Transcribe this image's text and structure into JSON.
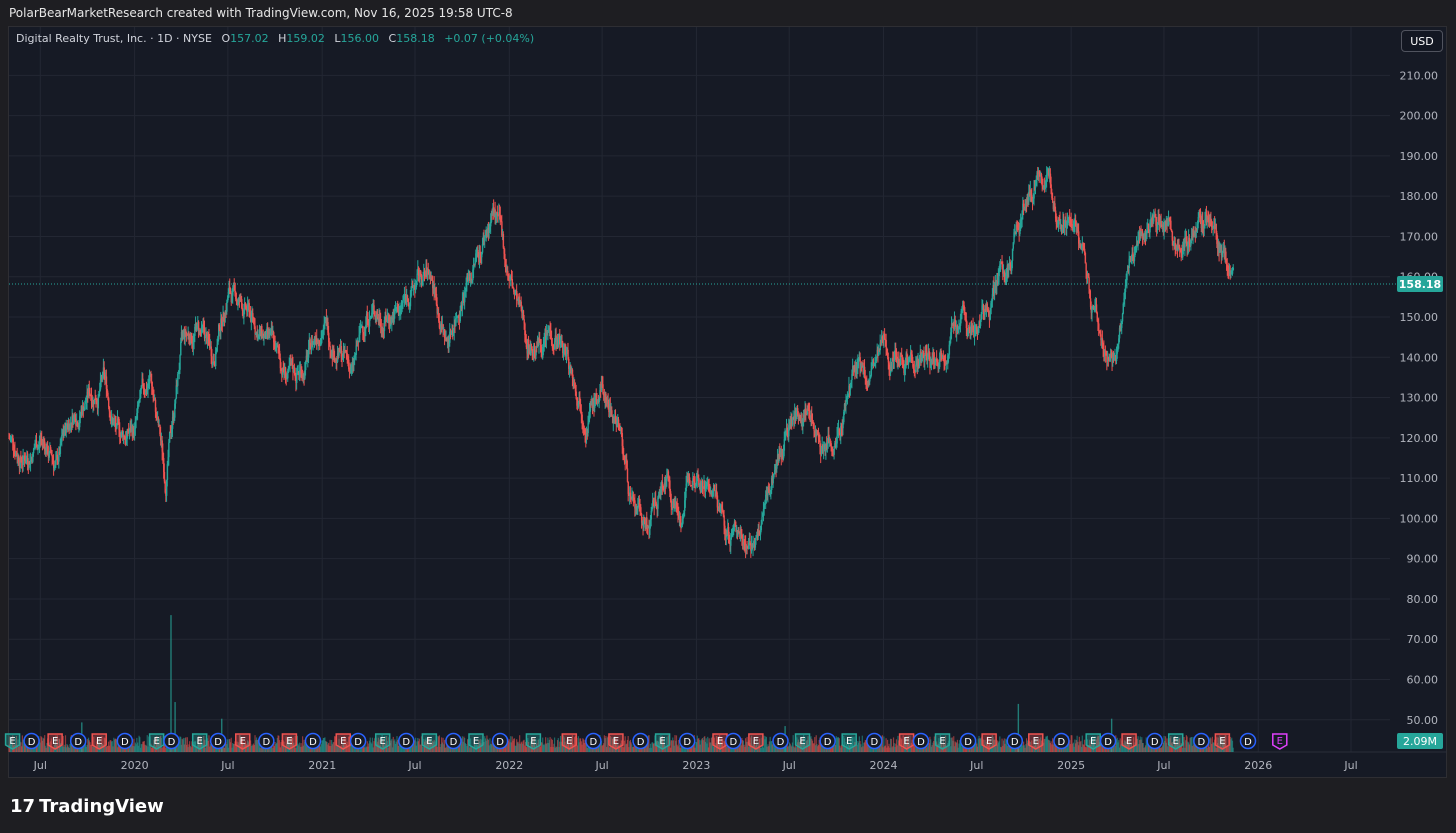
{
  "header": {
    "attribution": "PolarBearMarketResearch created with TradingView.com, Nov 16, 2025 19:58 UTC-8"
  },
  "legend": {
    "symbol": "Digital Realty Trust, Inc. · 1D · NYSE",
    "o_label": "O",
    "o_value": "157.02",
    "h_label": "H",
    "h_value": "159.02",
    "l_label": "L",
    "l_value": "156.00",
    "c_label": "C",
    "c_value": "158.18",
    "change": "+0.07 (+0.04%)"
  },
  "currency_button": "USD",
  "brand": {
    "logo": "17",
    "name": "TradingView"
  },
  "colors": {
    "background": "#161a25",
    "grid": "#232733",
    "up": "#26a69a",
    "down": "#ef5350",
    "text": "#b2b5be",
    "dividend": "#2962ff",
    "earnings_beat": "#26a69a",
    "earnings_miss": "#ef5350",
    "earnings_future": "#e040fb"
  },
  "chart_data": {
    "type": "candlestick",
    "y_axis": {
      "ticks": [
        "210.00",
        "200.00",
        "190.00",
        "180.00",
        "170.00",
        "160.00",
        "150.00",
        "140.00",
        "130.00",
        "120.00",
        "110.00",
        "100.00",
        "90.00",
        "80.00",
        "70.00",
        "60.00",
        "50.00"
      ],
      "tick_values": [
        210,
        200,
        190,
        180,
        170,
        160,
        150,
        140,
        130,
        120,
        110,
        100,
        90,
        80,
        70,
        60,
        50
      ],
      "range": [
        42,
        222
      ]
    },
    "x_axis": {
      "ticks": [
        "Jul",
        "2020",
        "Jul",
        "2021",
        "Jul",
        "2022",
        "Jul",
        "2023",
        "Jul",
        "2024",
        "Jul",
        "2025",
        "Jul",
        "2026",
        "Jul"
      ],
      "tick_dates": [
        "2019-07-01",
        "2020-01-01",
        "2020-07-01",
        "2021-01-01",
        "2021-07-01",
        "2022-01-01",
        "2022-07-01",
        "2023-01-01",
        "2023-07-01",
        "2024-01-01",
        "2024-07-01",
        "2025-01-01",
        "2025-07-01",
        "2026-01-01",
        "2026-07-01"
      ],
      "range": [
        "2019-05-01",
        "2026-09-15"
      ]
    },
    "last_price": {
      "value": 158.18,
      "label": "158.18"
    },
    "volume_label": "2.09M",
    "price_path": [
      [
        "2019-05-01",
        120
      ],
      [
        "2019-06-01",
        116
      ],
      [
        "2019-07-01",
        121
      ],
      [
        "2019-08-01",
        113
      ],
      [
        "2019-09-01",
        126
      ],
      [
        "2019-10-01",
        131
      ],
      [
        "2019-11-01",
        134
      ],
      [
        "2019-12-01",
        120
      ],
      [
        "2020-01-01",
        122
      ],
      [
        "2020-02-01",
        135
      ],
      [
        "2020-03-01",
        110
      ],
      [
        "2020-04-01",
        142
      ],
      [
        "2020-05-01",
        147
      ],
      [
        "2020-06-01",
        140
      ],
      [
        "2020-07-01",
        157
      ],
      [
        "2020-08-01",
        152
      ],
      [
        "2020-09-01",
        146
      ],
      [
        "2020-10-01",
        140
      ],
      [
        "2020-11-01",
        134
      ],
      [
        "2020-12-01",
        139
      ],
      [
        "2021-01-01",
        150
      ],
      [
        "2021-02-01",
        142
      ],
      [
        "2021-03-01",
        136
      ],
      [
        "2021-04-01",
        152
      ],
      [
        "2021-05-01",
        151
      ],
      [
        "2021-06-01",
        152
      ],
      [
        "2021-07-01",
        158
      ],
      [
        "2021-08-01",
        160
      ],
      [
        "2021-09-01",
        144
      ],
      [
        "2021-10-01",
        157
      ],
      [
        "2021-11-01",
        166
      ],
      [
        "2021-12-01",
        177
      ],
      [
        "2022-01-01",
        160
      ],
      [
        "2022-02-01",
        145
      ],
      [
        "2022-03-01",
        143
      ],
      [
        "2022-04-01",
        147
      ],
      [
        "2022-05-01",
        137
      ],
      [
        "2022-06-01",
        128
      ],
      [
        "2022-07-01",
        131
      ],
      [
        "2022-08-01",
        126
      ],
      [
        "2022-09-01",
        100
      ],
      [
        "2022-10-01",
        97
      ],
      [
        "2022-11-01",
        110
      ],
      [
        "2022-12-01",
        102
      ],
      [
        "2023-01-01",
        115
      ],
      [
        "2023-02-01",
        106
      ],
      [
        "2023-03-01",
        96
      ],
      [
        "2023-04-01",
        97
      ],
      [
        "2023-05-01",
        94
      ],
      [
        "2023-06-01",
        112
      ],
      [
        "2023-07-01",
        124
      ],
      [
        "2023-08-01",
        128
      ],
      [
        "2023-09-01",
        120
      ],
      [
        "2023-10-01",
        117
      ],
      [
        "2023-11-01",
        136
      ],
      [
        "2023-12-01",
        134
      ],
      [
        "2024-01-01",
        140
      ],
      [
        "2024-02-01",
        143
      ],
      [
        "2024-03-01",
        141
      ],
      [
        "2024-04-01",
        137
      ],
      [
        "2024-05-01",
        145
      ],
      [
        "2024-06-01",
        150
      ],
      [
        "2024-07-01",
        148
      ],
      [
        "2024-08-01",
        155
      ],
      [
        "2024-09-01",
        162
      ],
      [
        "2024-10-01",
        178
      ],
      [
        "2024-11-01",
        187
      ],
      [
        "2024-12-01",
        178
      ],
      [
        "2025-01-01",
        172
      ],
      [
        "2025-02-01",
        160
      ],
      [
        "2025-03-01",
        143
      ],
      [
        "2025-04-01",
        139
      ],
      [
        "2025-05-01",
        167
      ],
      [
        "2025-06-01",
        174
      ],
      [
        "2025-07-01",
        175
      ],
      [
        "2025-08-01",
        167
      ],
      [
        "2025-09-01",
        174
      ],
      [
        "2025-10-01",
        172
      ],
      [
        "2025-11-14",
        158
      ]
    ],
    "events": [
      {
        "type": "E",
        "result": "beat",
        "date": "2019-05-08"
      },
      {
        "type": "D",
        "date": "2019-06-14"
      },
      {
        "type": "E",
        "result": "miss",
        "date": "2019-07-30"
      },
      {
        "type": "D",
        "date": "2019-09-13"
      },
      {
        "type": "E",
        "result": "miss",
        "date": "2019-10-24"
      },
      {
        "type": "D",
        "date": "2019-12-13"
      },
      {
        "type": "E",
        "result": "beat",
        "date": "2020-02-13"
      },
      {
        "type": "D",
        "date": "2020-03-13"
      },
      {
        "type": "E",
        "result": "beat",
        "date": "2020-05-07"
      },
      {
        "type": "D",
        "date": "2020-06-12"
      },
      {
        "type": "E",
        "result": "miss",
        "date": "2020-07-30"
      },
      {
        "type": "D",
        "date": "2020-09-14"
      },
      {
        "type": "E",
        "result": "miss",
        "date": "2020-10-29"
      },
      {
        "type": "D",
        "date": "2020-12-14"
      },
      {
        "type": "E",
        "result": "miss",
        "date": "2021-02-11"
      },
      {
        "type": "D",
        "date": "2021-03-12"
      },
      {
        "type": "E",
        "result": "beat",
        "date": "2021-04-29"
      },
      {
        "type": "D",
        "date": "2021-06-14"
      },
      {
        "type": "E",
        "result": "beat",
        "date": "2021-07-29"
      },
      {
        "type": "D",
        "date": "2021-09-14"
      },
      {
        "type": "E",
        "result": "beat",
        "date": "2021-10-28"
      },
      {
        "type": "D",
        "date": "2021-12-14"
      },
      {
        "type": "E",
        "result": "beat",
        "date": "2022-02-17"
      },
      {
        "type": "E",
        "result": "miss",
        "date": "2022-04-28"
      },
      {
        "type": "D",
        "date": "2022-06-14"
      },
      {
        "type": "E",
        "result": "miss",
        "date": "2022-07-28"
      },
      {
        "type": "D",
        "date": "2022-09-14"
      },
      {
        "type": "E",
        "result": "beat",
        "date": "2022-10-27"
      },
      {
        "type": "D",
        "date": "2022-12-14"
      },
      {
        "type": "E",
        "result": "miss",
        "date": "2023-02-16"
      },
      {
        "type": "D",
        "date": "2023-03-14"
      },
      {
        "type": "E",
        "result": "miss",
        "date": "2023-04-27"
      },
      {
        "type": "D",
        "date": "2023-06-14"
      },
      {
        "type": "E",
        "result": "beat",
        "date": "2023-07-27"
      },
      {
        "type": "D",
        "date": "2023-09-14"
      },
      {
        "type": "E",
        "result": "beat",
        "date": "2023-10-26"
      },
      {
        "type": "D",
        "date": "2023-12-14"
      },
      {
        "type": "E",
        "result": "miss",
        "date": "2024-02-15"
      },
      {
        "type": "D",
        "date": "2024-03-14"
      },
      {
        "type": "E",
        "result": "beat",
        "date": "2024-04-25"
      },
      {
        "type": "D",
        "date": "2024-06-14"
      },
      {
        "type": "E",
        "result": "miss",
        "date": "2024-07-25"
      },
      {
        "type": "D",
        "date": "2024-09-13"
      },
      {
        "type": "E",
        "result": "miss",
        "date": "2024-10-24"
      },
      {
        "type": "D",
        "date": "2024-12-13"
      },
      {
        "type": "E",
        "result": "beat",
        "date": "2025-02-13"
      },
      {
        "type": "D",
        "date": "2025-03-14"
      },
      {
        "type": "E",
        "result": "miss",
        "date": "2025-04-24"
      },
      {
        "type": "D",
        "date": "2025-06-13"
      },
      {
        "type": "E",
        "result": "beat",
        "date": "2025-07-24"
      },
      {
        "type": "D",
        "date": "2025-09-12"
      },
      {
        "type": "E",
        "result": "miss",
        "date": "2025-10-23"
      },
      {
        "type": "D",
        "date": "2025-12-12"
      },
      {
        "type": "E",
        "result": "future",
        "date": "2026-02-12"
      }
    ],
    "volume_spikes": [
      [
        "2020-03-12",
        0.74
      ],
      [
        "2020-03-20",
        0.27
      ],
      [
        "2019-09-20",
        0.16
      ],
      [
        "2020-06-19",
        0.18
      ],
      [
        "2024-09-20",
        0.26
      ],
      [
        "2025-03-21",
        0.18
      ],
      [
        "2023-06-23",
        0.14
      ]
    ],
    "grid": true,
    "legend_position": "top-left"
  }
}
